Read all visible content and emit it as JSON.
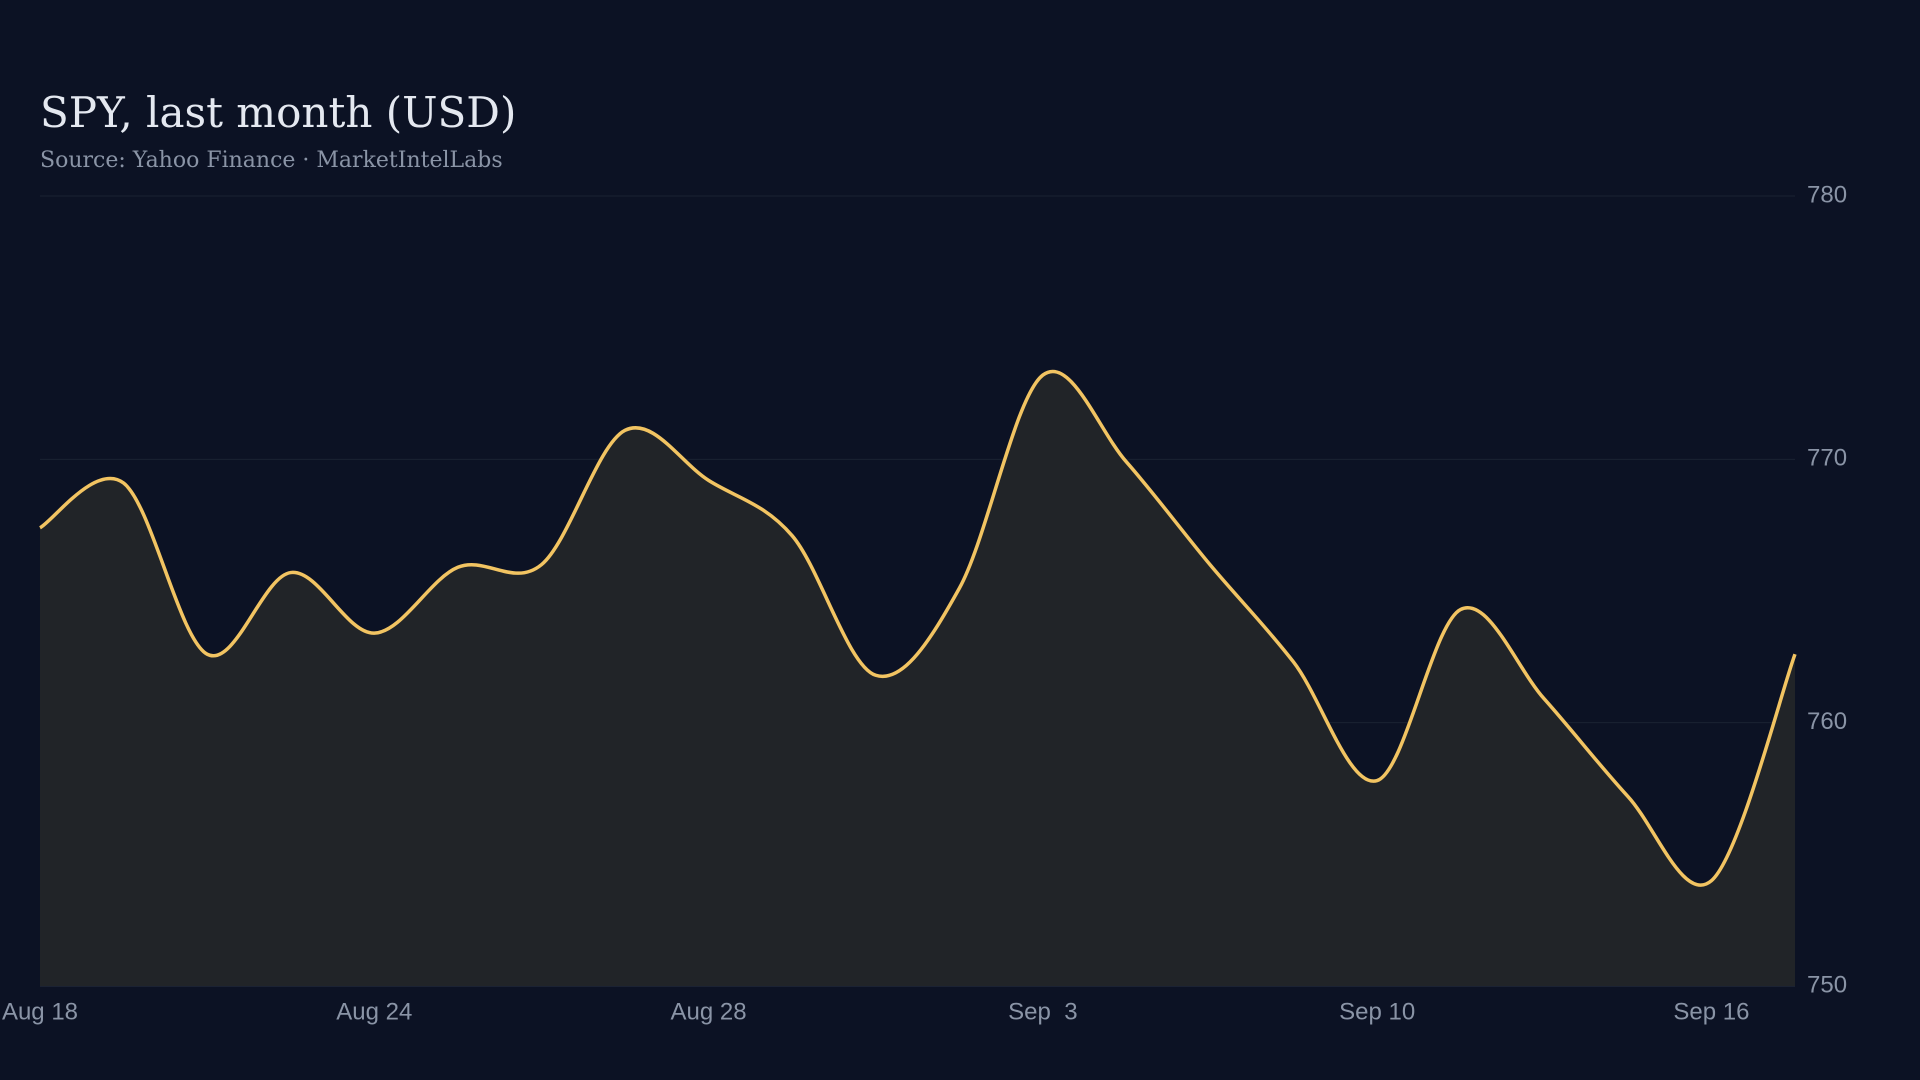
{
  "chart_data": {
    "type": "area",
    "title": "SPY, last month (USD)",
    "subtitle": "Source: Yahoo Finance · MarketIntelLabs",
    "categories": [
      "Aug 18",
      null,
      null,
      null,
      "Aug 24",
      null,
      null,
      null,
      "Aug 28",
      null,
      null,
      null,
      "Sep  3",
      null,
      null,
      null,
      "Sep 10",
      null,
      null,
      null,
      "Sep 16",
      null
    ],
    "series": [
      {
        "name": "SPY",
        "color": "#f2c462",
        "values": [
          767.4,
          769.1,
          762.6,
          765.7,
          763.4,
          765.9,
          766.0,
          771.1,
          769.2,
          767.1,
          761.8,
          765.1,
          773.2,
          769.9,
          766.0,
          762.3,
          757.8,
          764.3,
          760.9,
          757.2,
          754.0,
          762.6
        ]
      }
    ],
    "ylim": [
      750,
      780
    ],
    "yticks": [
      750,
      760,
      770,
      780
    ],
    "grid": true
  }
}
